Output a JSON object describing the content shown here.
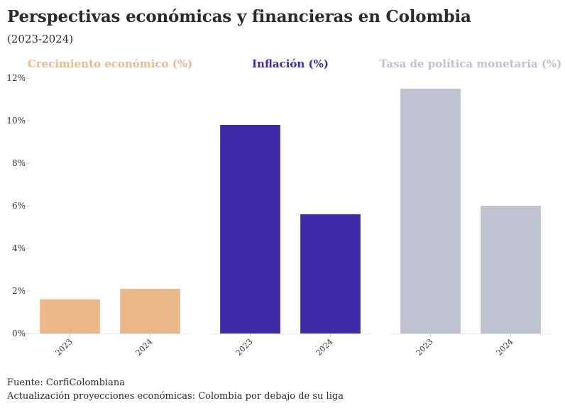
{
  "header": {
    "title": "Perspectivas económicas y financieras en Colombia",
    "subtitle": "(2023-2024)"
  },
  "footer": {
    "source": "Fuente: CorfiColombiana",
    "note": "Actualización proyecciones económicas: Colombia por debajo de su liga"
  },
  "chart_data": {
    "type": "bar",
    "layout": "small-multiples",
    "categories": [
      "2023",
      "2024"
    ],
    "ylim": [
      0,
      12
    ],
    "yticks": [
      0,
      2,
      4,
      6,
      8,
      10,
      12
    ],
    "ytick_labels": [
      "0%",
      "2%",
      "4%",
      "6%",
      "8%",
      "10%",
      "12%"
    ],
    "grid": false,
    "panels": [
      {
        "title": "Crecimiento económico (%)",
        "color": "#EBB989",
        "values": [
          1.6,
          2.1
        ]
      },
      {
        "title": "Inflación (%)",
        "color": "#3F2AA8",
        "values": [
          9.8,
          5.6
        ]
      },
      {
        "title": "Tasa de política monetaria (%)",
        "color": "#BFC2D0",
        "values": [
          11.5,
          6.0
        ]
      }
    ]
  }
}
